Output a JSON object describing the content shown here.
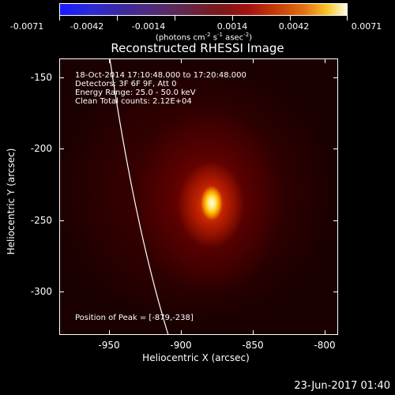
{
  "colorbar": {
    "tick_labels": [
      "-0.0071",
      "-0.0042",
      "-0.0014",
      "0.0014",
      "0.0042",
      "0.0071"
    ],
    "units": "(photons cm",
    "units_exp1": "-2",
    "units_mid": " s",
    "units_exp2": "-1",
    "units_mid2": " asec",
    "units_exp3": "-2",
    "units_end": ")",
    "colors": [
      "#1a1aff",
      "#5a2a5a",
      "#a21010",
      "#e27010",
      "#fffbe6"
    ]
  },
  "title": "Reconstructed RHESSI Image",
  "info": {
    "line1": "18-Oct-2014 17:10:48.000 to 17:20:48.000",
    "line2": "Detectors: 3F 6F 9F, Att 0",
    "line3": "Energy Range: 25.0 - 50.0 keV",
    "line4": "Clean    Total counts: 2.12E+04"
  },
  "peak": "Position of Peak = [-879,-238]",
  "chart_data": {
    "type": "heatmap",
    "title": "Reconstructed RHESSI Image",
    "xlabel": "Heliocentric X (arcsec)",
    "ylabel": "Heliocentric Y (arcsec)",
    "xlim": [
      -985,
      -790
    ],
    "ylim": [
      -334,
      -140
    ],
    "x_ticks": [
      -950,
      -900,
      -850,
      -800
    ],
    "y_ticks": [
      -150,
      -200,
      -250,
      -300
    ],
    "colorbar_range": [
      -0.0071,
      0.0071
    ],
    "peak_position": [
      -879,
      -238
    ]
  },
  "axes": {
    "x_tick_labels": [
      "-950",
      "-900",
      "-850",
      "-800"
    ],
    "y_tick_labels": [
      "-150",
      "-200",
      "-250",
      "-300"
    ]
  },
  "timestamp": "23-Jun-2017 01:40"
}
